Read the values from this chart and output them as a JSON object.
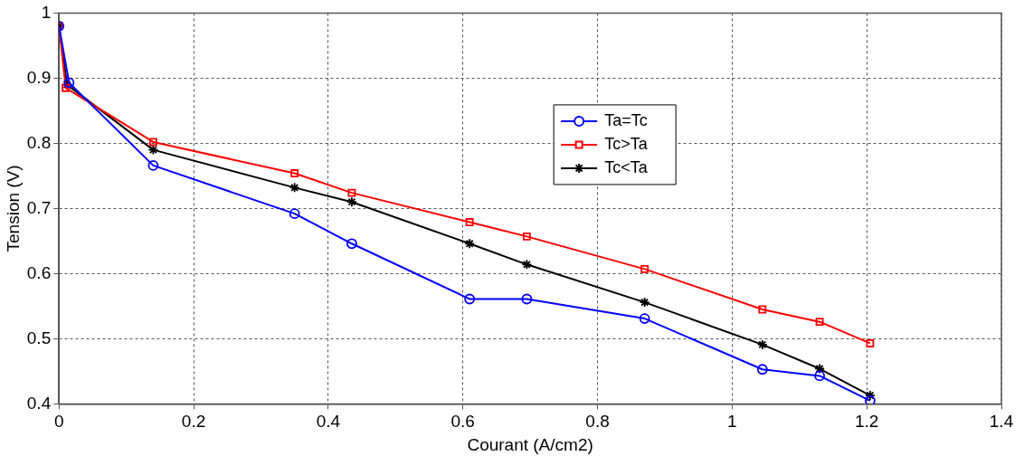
{
  "chart_data": {
    "type": "line",
    "xlabel": "Courant (A/cm2)",
    "ylabel": "Tension (V)",
    "xlim": [
      0,
      1.4
    ],
    "xticks": [
      0,
      0.2,
      0.4,
      0.6,
      0.8,
      1,
      1.2,
      1.4
    ],
    "ylim": [
      0.4,
      1
    ],
    "yticks": [
      0.4,
      0.5,
      0.6,
      0.7,
      0.8,
      0.9,
      1
    ],
    "grid": true,
    "legend": "top right",
    "line_style": "solid",
    "series": [
      {
        "name": "Ta=Tc",
        "color": "#0000ff",
        "marker": "circle",
        "x": [
          0,
          0.015,
          0.14,
          0.35,
          0.435,
          0.61,
          0.695,
          0.87,
          1.045,
          1.13,
          1.205
        ],
        "values": [
          0.98,
          0.893,
          0.766,
          0.692,
          0.646,
          0.561,
          0.561,
          0.531,
          0.453,
          0.443,
          0.405
        ]
      },
      {
        "name": "Tc>Ta",
        "color": "#ff0000",
        "marker": "square",
        "x": [
          0,
          0.01,
          0.14,
          0.35,
          0.435,
          0.61,
          0.695,
          0.87,
          1.045,
          1.13,
          1.205
        ],
        "values": [
          0.98,
          0.885,
          0.802,
          0.754,
          0.724,
          0.679,
          0.657,
          0.607,
          0.545,
          0.526,
          0.493
        ]
      },
      {
        "name": "Tc<Ta",
        "color": "#000000",
        "marker": "cross",
        "x": [
          0,
          0.012,
          0.14,
          0.35,
          0.435,
          0.61,
          0.695,
          0.87,
          1.045,
          1.13,
          1.205
        ],
        "values": [
          0.98,
          0.89,
          0.79,
          0.732,
          0.71,
          0.646,
          0.614,
          0.556,
          0.491,
          0.454,
          0.413
        ]
      }
    ]
  }
}
